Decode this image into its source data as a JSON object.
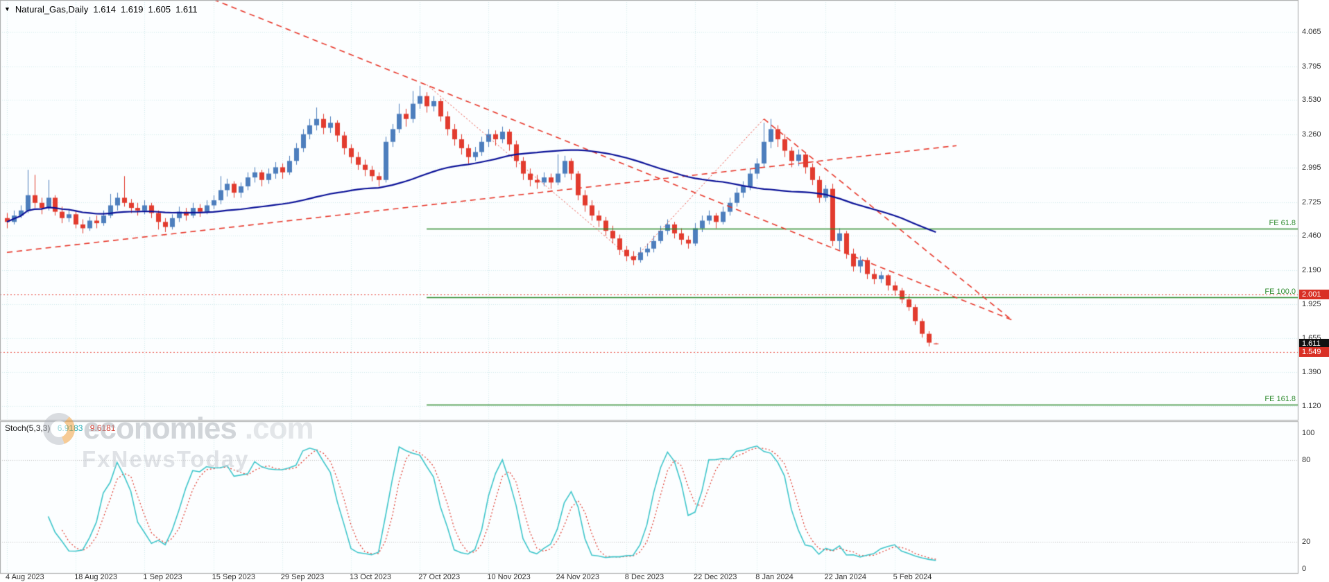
{
  "header": {
    "symbol": "Natural_Gas,Daily",
    "open": "1.614",
    "high": "1.619",
    "low": "1.605",
    "close": "1.611",
    "dropdown_icon": "▼"
  },
  "watermark": {
    "brand": "economies",
    "tld": ".com",
    "tagline": "FxNewsToday"
  },
  "chart_data": {
    "type": "candlestick",
    "symbol": "Natural_Gas",
    "timeframe": "Daily",
    "colors": {
      "bg": "#fcfeff",
      "grid": "#cfe9ec",
      "bull": "#4d7ebd",
      "bear": "#e23b2e",
      "trend": "#e8372a",
      "fib": "#2e8b2e",
      "border": "#a6a6a6"
    },
    "y_axis": {
      "range": [
        1.007,
        4.316
      ],
      "labels": [
        "4.065",
        "3.795",
        "3.530",
        "3.260",
        "2.995",
        "2.725",
        "2.460",
        "2.190",
        "1.925",
        "1.655",
        "1.390",
        "1.120"
      ]
    },
    "x_ticks": [
      {
        "index": 0,
        "label": "4 Aug 2023"
      },
      {
        "index": 10,
        "label": "18 Aug 2023"
      },
      {
        "index": 20,
        "label": "1 Sep 2023"
      },
      {
        "index": 30,
        "label": "15 Sep 2023"
      },
      {
        "index": 40,
        "label": "29 Sep 2023"
      },
      {
        "index": 50,
        "label": "13 Oct 2023"
      },
      {
        "index": 60,
        "label": "27 Oct 2023"
      },
      {
        "index": 70,
        "label": "10 Nov 2023"
      },
      {
        "index": 80,
        "label": "24 Nov 2023"
      },
      {
        "index": 90,
        "label": "8 Dec 2023"
      },
      {
        "index": 100,
        "label": "22 Dec 2023"
      },
      {
        "index": 109,
        "label": "8 Jan 2024"
      },
      {
        "index": 119,
        "label": "22 Jan 2024"
      },
      {
        "index": 129,
        "label": "5 Feb 2024"
      }
    ],
    "candles": [
      [
        2.6,
        2.64,
        2.52,
        2.57
      ],
      [
        2.57,
        2.66,
        2.55,
        2.62
      ],
      [
        2.62,
        2.7,
        2.6,
        2.66
      ],
      [
        2.66,
        2.98,
        2.64,
        2.78
      ],
      [
        2.78,
        2.94,
        2.68,
        2.72
      ],
      [
        2.72,
        2.76,
        2.63,
        2.68
      ],
      [
        2.68,
        2.9,
        2.66,
        2.76
      ],
      [
        2.76,
        2.78,
        2.62,
        2.65
      ],
      [
        2.65,
        2.69,
        2.56,
        2.6
      ],
      [
        2.6,
        2.67,
        2.57,
        2.63
      ],
      [
        2.63,
        2.66,
        2.52,
        2.55
      ],
      [
        2.55,
        2.59,
        2.48,
        2.52
      ],
      [
        2.52,
        2.61,
        2.5,
        2.58
      ],
      [
        2.58,
        2.62,
        2.52,
        2.56
      ],
      [
        2.56,
        2.66,
        2.54,
        2.62
      ],
      [
        2.62,
        2.79,
        2.6,
        2.7
      ],
      [
        2.7,
        2.8,
        2.66,
        2.76
      ],
      [
        2.76,
        2.93,
        2.69,
        2.72
      ],
      [
        2.72,
        2.75,
        2.64,
        2.68
      ],
      [
        2.68,
        2.72,
        2.62,
        2.66
      ],
      [
        2.66,
        2.74,
        2.63,
        2.7
      ],
      [
        2.7,
        2.72,
        2.6,
        2.64
      ],
      [
        2.64,
        2.66,
        2.51,
        2.57
      ],
      [
        2.57,
        2.6,
        2.49,
        2.53
      ],
      [
        2.53,
        2.63,
        2.51,
        2.6
      ],
      [
        2.6,
        2.69,
        2.57,
        2.65
      ],
      [
        2.65,
        2.68,
        2.58,
        2.62
      ],
      [
        2.62,
        2.72,
        2.6,
        2.68
      ],
      [
        2.68,
        2.71,
        2.61,
        2.65
      ],
      [
        2.65,
        2.74,
        2.63,
        2.7
      ],
      [
        2.7,
        2.78,
        2.67,
        2.74
      ],
      [
        2.74,
        2.93,
        2.71,
        2.82
      ],
      [
        2.82,
        2.91,
        2.77,
        2.87
      ],
      [
        2.87,
        2.89,
        2.76,
        2.8
      ],
      [
        2.8,
        2.88,
        2.76,
        2.85
      ],
      [
        2.85,
        2.96,
        2.82,
        2.92
      ],
      [
        2.92,
        3.0,
        2.88,
        2.96
      ],
      [
        2.96,
        2.98,
        2.85,
        2.9
      ],
      [
        2.9,
        2.99,
        2.87,
        2.95
      ],
      [
        2.95,
        3.04,
        2.91,
        3.0
      ],
      [
        3.0,
        3.03,
        2.91,
        2.96
      ],
      [
        2.96,
        3.09,
        2.94,
        3.05
      ],
      [
        3.05,
        3.19,
        3.02,
        3.15
      ],
      [
        3.15,
        3.3,
        3.12,
        3.26
      ],
      [
        3.26,
        3.38,
        3.22,
        3.33
      ],
      [
        3.33,
        3.47,
        3.29,
        3.38
      ],
      [
        3.38,
        3.42,
        3.26,
        3.31
      ],
      [
        3.31,
        3.4,
        3.27,
        3.35
      ],
      [
        3.35,
        3.37,
        3.2,
        3.25
      ],
      [
        3.25,
        3.28,
        3.1,
        3.15
      ],
      [
        3.15,
        3.18,
        3.03,
        3.08
      ],
      [
        3.08,
        3.12,
        2.98,
        3.02
      ],
      [
        3.02,
        3.06,
        2.93,
        2.98
      ],
      [
        2.98,
        3.01,
        2.89,
        2.93
      ],
      [
        2.93,
        2.96,
        2.85,
        2.9
      ],
      [
        2.9,
        3.24,
        2.88,
        3.2
      ],
      [
        3.2,
        3.34,
        3.16,
        3.3
      ],
      [
        3.3,
        3.5,
        3.27,
        3.42
      ],
      [
        3.42,
        3.46,
        3.32,
        3.38
      ],
      [
        3.38,
        3.6,
        3.35,
        3.5
      ],
      [
        3.5,
        3.64,
        3.46,
        3.56
      ],
      [
        3.56,
        3.59,
        3.43,
        3.48
      ],
      [
        3.48,
        3.56,
        3.44,
        3.52
      ],
      [
        3.52,
        3.54,
        3.36,
        3.4
      ],
      [
        3.4,
        3.44,
        3.25,
        3.3
      ],
      [
        3.3,
        3.34,
        3.17,
        3.22
      ],
      [
        3.22,
        3.26,
        3.1,
        3.15
      ],
      [
        3.15,
        3.18,
        3.03,
        3.08
      ],
      [
        3.08,
        3.16,
        3.05,
        3.12
      ],
      [
        3.12,
        3.24,
        3.09,
        3.2
      ],
      [
        3.2,
        3.3,
        3.16,
        3.26
      ],
      [
        3.26,
        3.29,
        3.17,
        3.22
      ],
      [
        3.22,
        3.32,
        3.19,
        3.28
      ],
      [
        3.28,
        3.3,
        3.13,
        3.18
      ],
      [
        3.18,
        3.21,
        3.0,
        3.05
      ],
      [
        3.05,
        3.08,
        2.9,
        2.95
      ],
      [
        2.95,
        2.99,
        2.85,
        2.9
      ],
      [
        2.9,
        2.94,
        2.83,
        2.88
      ],
      [
        2.88,
        2.96,
        2.85,
        2.92
      ],
      [
        2.92,
        2.95,
        2.83,
        2.88
      ],
      [
        2.88,
        3.1,
        2.86,
        2.95
      ],
      [
        2.95,
        3.09,
        2.92,
        3.05
      ],
      [
        3.05,
        3.07,
        2.9,
        2.95
      ],
      [
        2.95,
        2.97,
        2.74,
        2.78
      ],
      [
        2.78,
        2.82,
        2.65,
        2.7
      ],
      [
        2.7,
        2.74,
        2.58,
        2.62
      ],
      [
        2.62,
        2.66,
        2.53,
        2.58
      ],
      [
        2.58,
        2.61,
        2.46,
        2.5
      ],
      [
        2.5,
        2.54,
        2.4,
        2.44
      ],
      [
        2.44,
        2.47,
        2.31,
        2.35
      ],
      [
        2.35,
        2.38,
        2.26,
        2.3
      ],
      [
        2.3,
        2.34,
        2.23,
        2.27
      ],
      [
        2.27,
        2.37,
        2.25,
        2.33
      ],
      [
        2.33,
        2.4,
        2.3,
        2.36
      ],
      [
        2.36,
        2.46,
        2.33,
        2.42
      ],
      [
        2.42,
        2.54,
        2.4,
        2.5
      ],
      [
        2.5,
        2.59,
        2.47,
        2.55
      ],
      [
        2.55,
        2.57,
        2.44,
        2.48
      ],
      [
        2.48,
        2.52,
        2.39,
        2.43
      ],
      [
        2.43,
        2.46,
        2.36,
        2.4
      ],
      [
        2.4,
        2.56,
        2.38,
        2.52
      ],
      [
        2.52,
        2.62,
        2.49,
        2.58
      ],
      [
        2.58,
        2.66,
        2.55,
        2.62
      ],
      [
        2.62,
        2.64,
        2.52,
        2.57
      ],
      [
        2.57,
        2.69,
        2.55,
        2.65
      ],
      [
        2.65,
        2.76,
        2.62,
        2.72
      ],
      [
        2.72,
        2.84,
        2.69,
        2.8
      ],
      [
        2.8,
        2.89,
        2.76,
        2.85
      ],
      [
        2.85,
        2.99,
        2.82,
        2.95
      ],
      [
        2.95,
        3.07,
        2.91,
        3.03
      ],
      [
        3.03,
        3.35,
        3.0,
        3.2
      ],
      [
        3.2,
        3.38,
        3.15,
        3.3
      ],
      [
        3.3,
        3.33,
        3.16,
        3.22
      ],
      [
        3.22,
        3.26,
        3.08,
        3.13
      ],
      [
        3.13,
        3.16,
        3.0,
        3.05
      ],
      [
        3.05,
        3.14,
        3.01,
        3.1
      ],
      [
        3.1,
        3.12,
        2.95,
        3.0
      ],
      [
        3.0,
        3.03,
        2.86,
        2.9
      ],
      [
        2.9,
        2.93,
        2.72,
        2.76
      ],
      [
        2.76,
        2.86,
        2.73,
        2.83
      ],
      [
        2.83,
        2.87,
        2.38,
        2.42
      ],
      [
        2.42,
        2.52,
        2.35,
        2.48
      ],
      [
        2.48,
        2.5,
        2.28,
        2.32
      ],
      [
        2.32,
        2.36,
        2.18,
        2.22
      ],
      [
        2.22,
        2.3,
        2.17,
        2.27
      ],
      [
        2.27,
        2.29,
        2.12,
        2.16
      ],
      [
        2.16,
        2.2,
        2.08,
        2.12
      ],
      [
        2.12,
        2.18,
        2.09,
        2.15
      ],
      [
        2.15,
        2.16,
        2.03,
        2.07
      ],
      [
        2.07,
        2.1,
        1.99,
        2.03
      ],
      [
        2.03,
        2.05,
        1.93,
        1.96
      ],
      [
        1.96,
        1.99,
        1.87,
        1.9
      ],
      [
        1.9,
        1.92,
        1.76,
        1.79
      ],
      [
        1.79,
        1.81,
        1.66,
        1.69
      ],
      [
        1.69,
        1.71,
        1.59,
        1.62
      ],
      [
        1.614,
        1.619,
        1.605,
        1.611
      ]
    ],
    "moving_average": {
      "period": 50,
      "color": "#0b1298"
    },
    "fib_start_index": 61,
    "fib_extensions": [
      {
        "label": "FE 61.8",
        "price": 2.518
      },
      {
        "label": "FE 100.0",
        "price": 1.975
      },
      {
        "label": "FE 161.8",
        "price": 1.133
      }
    ],
    "h_lines": [
      {
        "price": 2.001
      },
      {
        "price": 1.549
      }
    ],
    "price_tags": [
      {
        "text": "2.001",
        "price": 2.001,
        "bg": "#d93025"
      },
      {
        "text": "1.611",
        "price": 1.611,
        "bg": "#111111"
      },
      {
        "text": "1.549",
        "price": 1.549,
        "bg": "#d93025"
      }
    ],
    "trend_lines": [
      {
        "from": [
          30,
          4.32
        ],
        "to": [
          146,
          1.8
        ],
        "style": "dashed"
      },
      {
        "from": [
          0,
          2.33
        ],
        "to": [
          138,
          3.17
        ],
        "style": "dashed"
      },
      {
        "from": [
          61,
          3.65
        ],
        "to": [
          91,
          2.27
        ],
        "style": "dotted"
      },
      {
        "from": [
          91,
          2.27
        ],
        "to": [
          110,
          3.38
        ],
        "style": "dotted"
      },
      {
        "from": [
          110,
          3.38
        ],
        "to": [
          146,
          1.8
        ],
        "style": "dashed"
      }
    ],
    "stochastic": {
      "label": "Stoch(5,3,3)",
      "value_main": "6.9183",
      "value_signal": "9.6181",
      "periods": [
        5,
        3,
        3
      ],
      "range": [
        0,
        100
      ],
      "levels": [
        20,
        80
      ],
      "axis_labels": [
        "100",
        "80",
        "20",
        "0"
      ],
      "main_color": "#3ec6cb",
      "signal_color": "#e0372b"
    }
  }
}
